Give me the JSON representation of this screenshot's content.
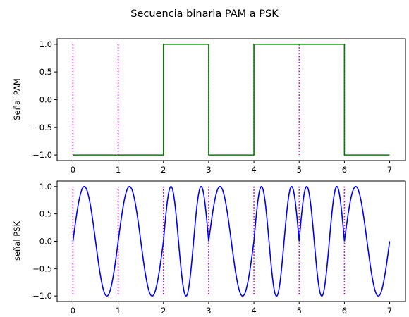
{
  "title": "Secuencia binaria PAM a PSK",
  "colors": {
    "pam_line": "#008000",
    "psk_line": "#0000ff",
    "marker_line": "#bf00bf",
    "frame": "#000000",
    "background": "#ffffff"
  },
  "chart_data": [
    {
      "type": "line",
      "ylabel": "Señal PAM",
      "xlim": [
        -0.35,
        7.35
      ],
      "ylim": [
        -1.1,
        1.1
      ],
      "x_ticks": [
        "0",
        "1",
        "2",
        "3",
        "4",
        "5",
        "6",
        "7"
      ],
      "y_ticks": [
        "1.0",
        "0.5",
        "0.0",
        "−0.5",
        "−1.0"
      ],
      "grid": false,
      "series": [
        {
          "style": "step",
          "bits": [
            0,
            0,
            1,
            0,
            1,
            1,
            0
          ],
          "levels": [
            -1,
            -1,
            1,
            -1,
            1,
            1,
            -1
          ],
          "x": [
            0,
            7
          ]
        }
      ],
      "markers": {
        "style": "dotted",
        "x": [
          0,
          1,
          2,
          3,
          4,
          5,
          6
        ],
        "y_range": [
          -1,
          1
        ]
      }
    },
    {
      "type": "line",
      "ylabel": "señal PSK",
      "xlim": [
        -0.35,
        7.35
      ],
      "ylim": [
        -1.1,
        1.1
      ],
      "x_ticks": [
        "0",
        "1",
        "2",
        "3",
        "4",
        "5",
        "6",
        "7"
      ],
      "y_ticks": [
        "1.0",
        "0.5",
        "0.0",
        "−0.5",
        "−1.0"
      ],
      "grid": false,
      "series": [
        {
          "function": "sin(2*pi*t) for bit 0, sin(2*pi*1.5*(t - k)) for bit 1 within symbol k",
          "bits": [
            0,
            0,
            1,
            0,
            1,
            1,
            0
          ],
          "x": [
            0,
            7
          ]
        }
      ],
      "markers": {
        "style": "dotted",
        "x": [
          0,
          1,
          2,
          3,
          4,
          5,
          6
        ],
        "y_range": [
          -1,
          1
        ]
      }
    }
  ]
}
